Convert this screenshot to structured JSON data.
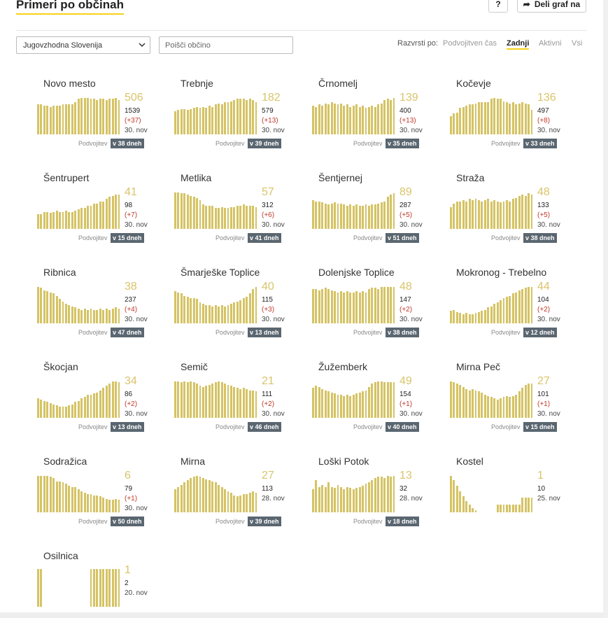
{
  "header": {
    "title": "Primeri po občinah",
    "help_label": "?",
    "share_label": "Deli graf na"
  },
  "controls": {
    "region_select": "Jugovzhodna Slovenija",
    "search_placeholder": "Poišči občino",
    "sort_label": "Razvrsti po:",
    "sort_options": [
      {
        "label": "Podvojitven čas",
        "active": false
      },
      {
        "label": "Zadnji",
        "active": true
      },
      {
        "label": "Aktivni",
        "active": false
      },
      {
        "label": "Vsi",
        "active": false
      }
    ]
  },
  "colors": {
    "accent": "#f5d21a",
    "bar": "#d5c364",
    "new_cases": "#c0392b",
    "badge": "#5a6670"
  },
  "municipalities": [
    {
      "name": "Novo mesto",
      "active": "506",
      "total": "1539",
      "new": "(+37)",
      "date": "30. nov",
      "doubling_label": "Podvojitev",
      "doubling": "v 38 dneh",
      "spark": [
        0.79,
        0.79,
        0.76,
        0.76,
        0.73,
        0.76,
        0.76,
        0.76,
        0.79,
        0.79,
        0.79,
        0.79,
        0.85,
        0.94,
        0.97,
        0.97,
        0.97,
        0.94,
        0.94,
        0.91,
        0.94,
        0.94,
        0.91,
        0.94,
        0.94,
        0.97,
        0.91
      ]
    },
    {
      "name": "Trebnje",
      "active": "182",
      "total": "579",
      "new": "(+13)",
      "date": "30. nov",
      "doubling_label": "Podvojitev",
      "doubling": "v 39 dneh",
      "spark": [
        0.61,
        0.64,
        0.67,
        0.67,
        0.64,
        0.67,
        0.7,
        0.73,
        0.7,
        0.73,
        0.7,
        0.76,
        0.73,
        0.79,
        0.82,
        0.79,
        0.85,
        0.85,
        0.88,
        0.91,
        0.94,
        0.94,
        0.94,
        0.91,
        0.94,
        0.91,
        0.85
      ]
    },
    {
      "name": "Črnomelj",
      "active": "139",
      "total": "400",
      "new": "(+13)",
      "date": "30. nov",
      "doubling_label": "Podvojitev",
      "doubling": "v 35 dneh",
      "spark": [
        0.76,
        0.73,
        0.79,
        0.76,
        0.82,
        0.79,
        0.85,
        0.82,
        0.79,
        0.82,
        0.76,
        0.79,
        0.73,
        0.76,
        0.79,
        0.73,
        0.76,
        0.7,
        0.73,
        0.76,
        0.73,
        0.79,
        0.82,
        0.91,
        0.94,
        0.91,
        0.97
      ]
    },
    {
      "name": "Kočevje",
      "active": "136",
      "total": "497",
      "new": "(+8)",
      "date": "30. nov",
      "doubling_label": "Podvojitev",
      "doubling": "v 33 dneh",
      "spark": [
        0.48,
        0.55,
        0.58,
        0.7,
        0.73,
        0.76,
        0.79,
        0.79,
        0.82,
        0.85,
        0.85,
        0.85,
        0.85,
        0.94,
        0.97,
        0.94,
        0.94,
        0.88,
        0.85,
        0.82,
        0.85,
        0.79,
        0.82,
        0.85,
        0.82,
        0.79,
        0.64
      ]
    },
    {
      "name": "Šentrupert",
      "active": "41",
      "total": "98",
      "new": "(+7)",
      "date": "30. nov",
      "doubling_label": "Podvojitev",
      "doubling": "v 15 dneh",
      "spark": [
        0.39,
        0.39,
        0.45,
        0.45,
        0.42,
        0.45,
        0.48,
        0.45,
        0.45,
        0.48,
        0.45,
        0.45,
        0.48,
        0.52,
        0.55,
        0.55,
        0.61,
        0.61,
        0.67,
        0.67,
        0.73,
        0.73,
        0.79,
        0.85,
        0.88,
        0.91,
        0.91
      ]
    },
    {
      "name": "Metlika",
      "active": "57",
      "total": "312",
      "new": "(+6)",
      "date": "30. nov",
      "doubling_label": "Podvojitev",
      "doubling": "v 41 dneh",
      "spark": [
        0.97,
        0.97,
        0.94,
        0.94,
        0.91,
        0.88,
        0.85,
        0.82,
        0.76,
        0.64,
        0.61,
        0.61,
        0.61,
        0.55,
        0.55,
        0.58,
        0.55,
        0.55,
        0.58,
        0.58,
        0.61,
        0.61,
        0.64,
        0.61,
        0.61,
        0.61,
        0.58
      ]
    },
    {
      "name": "Šentjernej",
      "active": "89",
      "total": "287",
      "new": "(+5)",
      "date": "30. nov",
      "doubling_label": "Podvojitev",
      "doubling": "v 51 dneh",
      "spark": [
        0.76,
        0.73,
        0.73,
        0.7,
        0.67,
        0.64,
        0.67,
        0.7,
        0.67,
        0.67,
        0.64,
        0.61,
        0.64,
        0.61,
        0.64,
        0.61,
        0.61,
        0.64,
        0.61,
        0.64,
        0.64,
        0.67,
        0.7,
        0.73,
        0.85,
        0.91,
        0.94
      ]
    },
    {
      "name": "Straža",
      "active": "48",
      "total": "133",
      "new": "(+5)",
      "date": "30. nov",
      "doubling_label": "Podvojitev",
      "doubling": "v 38 dneh",
      "spark": [
        0.58,
        0.67,
        0.73,
        0.73,
        0.76,
        0.73,
        0.79,
        0.76,
        0.79,
        0.76,
        0.73,
        0.76,
        0.79,
        0.73,
        0.76,
        0.73,
        0.7,
        0.73,
        0.76,
        0.73,
        0.79,
        0.82,
        0.88,
        0.91,
        0.88,
        0.94,
        0.91
      ]
    },
    {
      "name": "Ribnica",
      "active": "38",
      "total": "237",
      "new": "(+4)",
      "date": "30. nov",
      "doubling_label": "Podvojitev",
      "doubling": "v 47 dneh",
      "spark": [
        0.97,
        0.94,
        0.88,
        0.85,
        0.82,
        0.79,
        0.73,
        0.64,
        0.58,
        0.52,
        0.48,
        0.45,
        0.42,
        0.39,
        0.36,
        0.39,
        0.36,
        0.39,
        0.36,
        0.36,
        0.39,
        0.36,
        0.39,
        0.36,
        0.39,
        0.42,
        0.39
      ]
    },
    {
      "name": "Šmarješke Toplice",
      "active": "40",
      "total": "115",
      "new": "(+3)",
      "date": "30. nov",
      "doubling_label": "Podvojitev",
      "doubling": "v 13 dneh",
      "spark": [
        0.85,
        0.82,
        0.79,
        0.73,
        0.7,
        0.67,
        0.67,
        0.64,
        0.55,
        0.52,
        0.48,
        0.48,
        0.45,
        0.48,
        0.45,
        0.48,
        0.45,
        0.48,
        0.52,
        0.55,
        0.58,
        0.61,
        0.67,
        0.7,
        0.79,
        0.91,
        0.97
      ]
    },
    {
      "name": "Dolenjske Toplice",
      "active": "48",
      "total": "147",
      "new": "(+2)",
      "date": "30. nov",
      "doubling_label": "Podvojitev",
      "doubling": "v 38 dneh",
      "spark": [
        0.91,
        0.91,
        0.88,
        0.91,
        0.94,
        0.91,
        0.88,
        0.85,
        0.82,
        0.85,
        0.82,
        0.85,
        0.82,
        0.82,
        0.85,
        0.82,
        0.85,
        0.82,
        0.91,
        0.94,
        0.94,
        0.91,
        0.97,
        0.97,
        0.97,
        0.97,
        0.97
      ]
    },
    {
      "name": "Mokronog - Trebelno",
      "active": "44",
      "total": "104",
      "new": "(+2)",
      "date": "30. nov",
      "doubling_label": "Podvojitev",
      "doubling": "v 12 dneh",
      "spark": [
        0.33,
        0.36,
        0.3,
        0.27,
        0.24,
        0.27,
        0.24,
        0.24,
        0.27,
        0.3,
        0.33,
        0.36,
        0.42,
        0.45,
        0.52,
        0.55,
        0.61,
        0.67,
        0.7,
        0.73,
        0.79,
        0.82,
        0.88,
        0.91,
        0.94,
        0.97,
        0.97
      ]
    },
    {
      "name": "Škocjan",
      "active": "34",
      "total": "86",
      "new": "(+2)",
      "date": "30. nov",
      "doubling_label": "Podvojitev",
      "doubling": "v 13 dneh",
      "spark": [
        0.52,
        0.48,
        0.45,
        0.42,
        0.39,
        0.36,
        0.33,
        0.3,
        0.3,
        0.3,
        0.33,
        0.36,
        0.42,
        0.45,
        0.52,
        0.55,
        0.61,
        0.61,
        0.64,
        0.67,
        0.73,
        0.79,
        0.85,
        0.91,
        0.97,
        0.97,
        0.94
      ]
    },
    {
      "name": "Semič",
      "active": "21",
      "total": "111",
      "new": "(+2)",
      "date": "30. nov",
      "doubling_label": "Podvojitev",
      "doubling": "v 46 dneh",
      "spark": [
        0.97,
        0.97,
        0.94,
        0.97,
        0.94,
        0.97,
        0.94,
        0.91,
        0.85,
        0.82,
        0.85,
        0.88,
        0.91,
        0.94,
        0.97,
        0.94,
        0.91,
        0.88,
        0.85,
        0.82,
        0.79,
        0.76,
        0.79,
        0.76,
        0.73,
        0.73,
        0.7
      ]
    },
    {
      "name": "Žužemberk",
      "active": "49",
      "total": "154",
      "new": "(+1)",
      "date": "30. nov",
      "doubling_label": "Podvojitev",
      "doubling": "v 40 dneh",
      "spark": [
        0.79,
        0.85,
        0.82,
        0.76,
        0.73,
        0.7,
        0.67,
        0.64,
        0.61,
        0.61,
        0.58,
        0.61,
        0.58,
        0.61,
        0.64,
        0.67,
        0.7,
        0.73,
        0.82,
        0.91,
        0.94,
        0.97,
        0.97,
        0.94,
        0.94,
        0.94,
        0.94
      ]
    },
    {
      "name": "Mirna Peč",
      "active": "27",
      "total": "101",
      "new": "(+1)",
      "date": "30. nov",
      "doubling_label": "Podvojitev",
      "doubling": "v 15 dneh",
      "spark": [
        0.97,
        0.94,
        0.91,
        0.88,
        0.82,
        0.76,
        0.73,
        0.76,
        0.73,
        0.7,
        0.67,
        0.61,
        0.58,
        0.55,
        0.52,
        0.48,
        0.52,
        0.55,
        0.58,
        0.55,
        0.58,
        0.61,
        0.7,
        0.79,
        0.88,
        0.91,
        0.91
      ]
    },
    {
      "name": "Sodražica",
      "active": "6",
      "total": "79",
      "new": "(+1)",
      "date": "30. nov",
      "doubling_label": "Podvojitev",
      "doubling": "v 50 dneh",
      "spark": [
        0.97,
        0.97,
        0.97,
        0.97,
        0.94,
        0.91,
        0.82,
        0.82,
        0.79,
        0.76,
        0.7,
        0.67,
        0.67,
        0.61,
        0.55,
        0.52,
        0.48,
        0.48,
        0.45,
        0.45,
        0.42,
        0.39,
        0.36,
        0.33,
        0.33,
        0.36,
        0.33
      ]
    },
    {
      "name": "Mirna",
      "active": "27",
      "total": "113",
      "new": "",
      "date": "28. nov",
      "doubling_label": "Podvojitev",
      "doubling": "v 39 dneh",
      "spark": [
        0.61,
        0.67,
        0.73,
        0.79,
        0.85,
        0.91,
        0.94,
        0.97,
        0.94,
        0.91,
        0.88,
        0.85,
        0.82,
        0.79,
        0.73,
        0.67,
        0.61,
        0.55,
        0.52,
        0.45,
        0.42,
        0.45,
        0.48,
        0.48,
        0.52,
        0.55,
        0.52
      ]
    },
    {
      "name": "Loški Potok",
      "active": "13",
      "total": "32",
      "new": "",
      "date": "28. nov",
      "doubling_label": "Podvojitev",
      "doubling": "v 18 dneh",
      "spark": [
        0.61,
        0.85,
        0.67,
        0.73,
        0.67,
        0.79,
        0.67,
        0.64,
        0.73,
        0.67,
        0.61,
        0.67,
        0.64,
        0.61,
        0.64,
        0.67,
        0.7,
        0.76,
        0.79,
        0.85,
        0.91,
        0.94,
        0.94,
        0.91,
        0.97,
        0.94,
        0.97
      ]
    },
    {
      "name": "Kostel",
      "active": "1",
      "total": "10",
      "new": "",
      "date": "25. nov",
      "doubling_label": "",
      "doubling": "",
      "spark": [
        0.97,
        0.85,
        0.7,
        0.55,
        0.42,
        0.3,
        0.21,
        0.12,
        0.06,
        0,
        0,
        0,
        0,
        0,
        0,
        0.21,
        0.21,
        0.21,
        0.21,
        0.21,
        0.21,
        0.21,
        0.21,
        0.39,
        0.39,
        0.39,
        0.39
      ]
    },
    {
      "name": "Osilnica",
      "active": "1",
      "total": "2",
      "new": "",
      "date": "20. nov",
      "doubling_label": "",
      "doubling": "",
      "spark": [
        1,
        1,
        0,
        0,
        0,
        0,
        0,
        0,
        0,
        0,
        0,
        0,
        0,
        0,
        0,
        0,
        0,
        1,
        1,
        1,
        1,
        1,
        1,
        1,
        1,
        1,
        1
      ]
    }
  ]
}
